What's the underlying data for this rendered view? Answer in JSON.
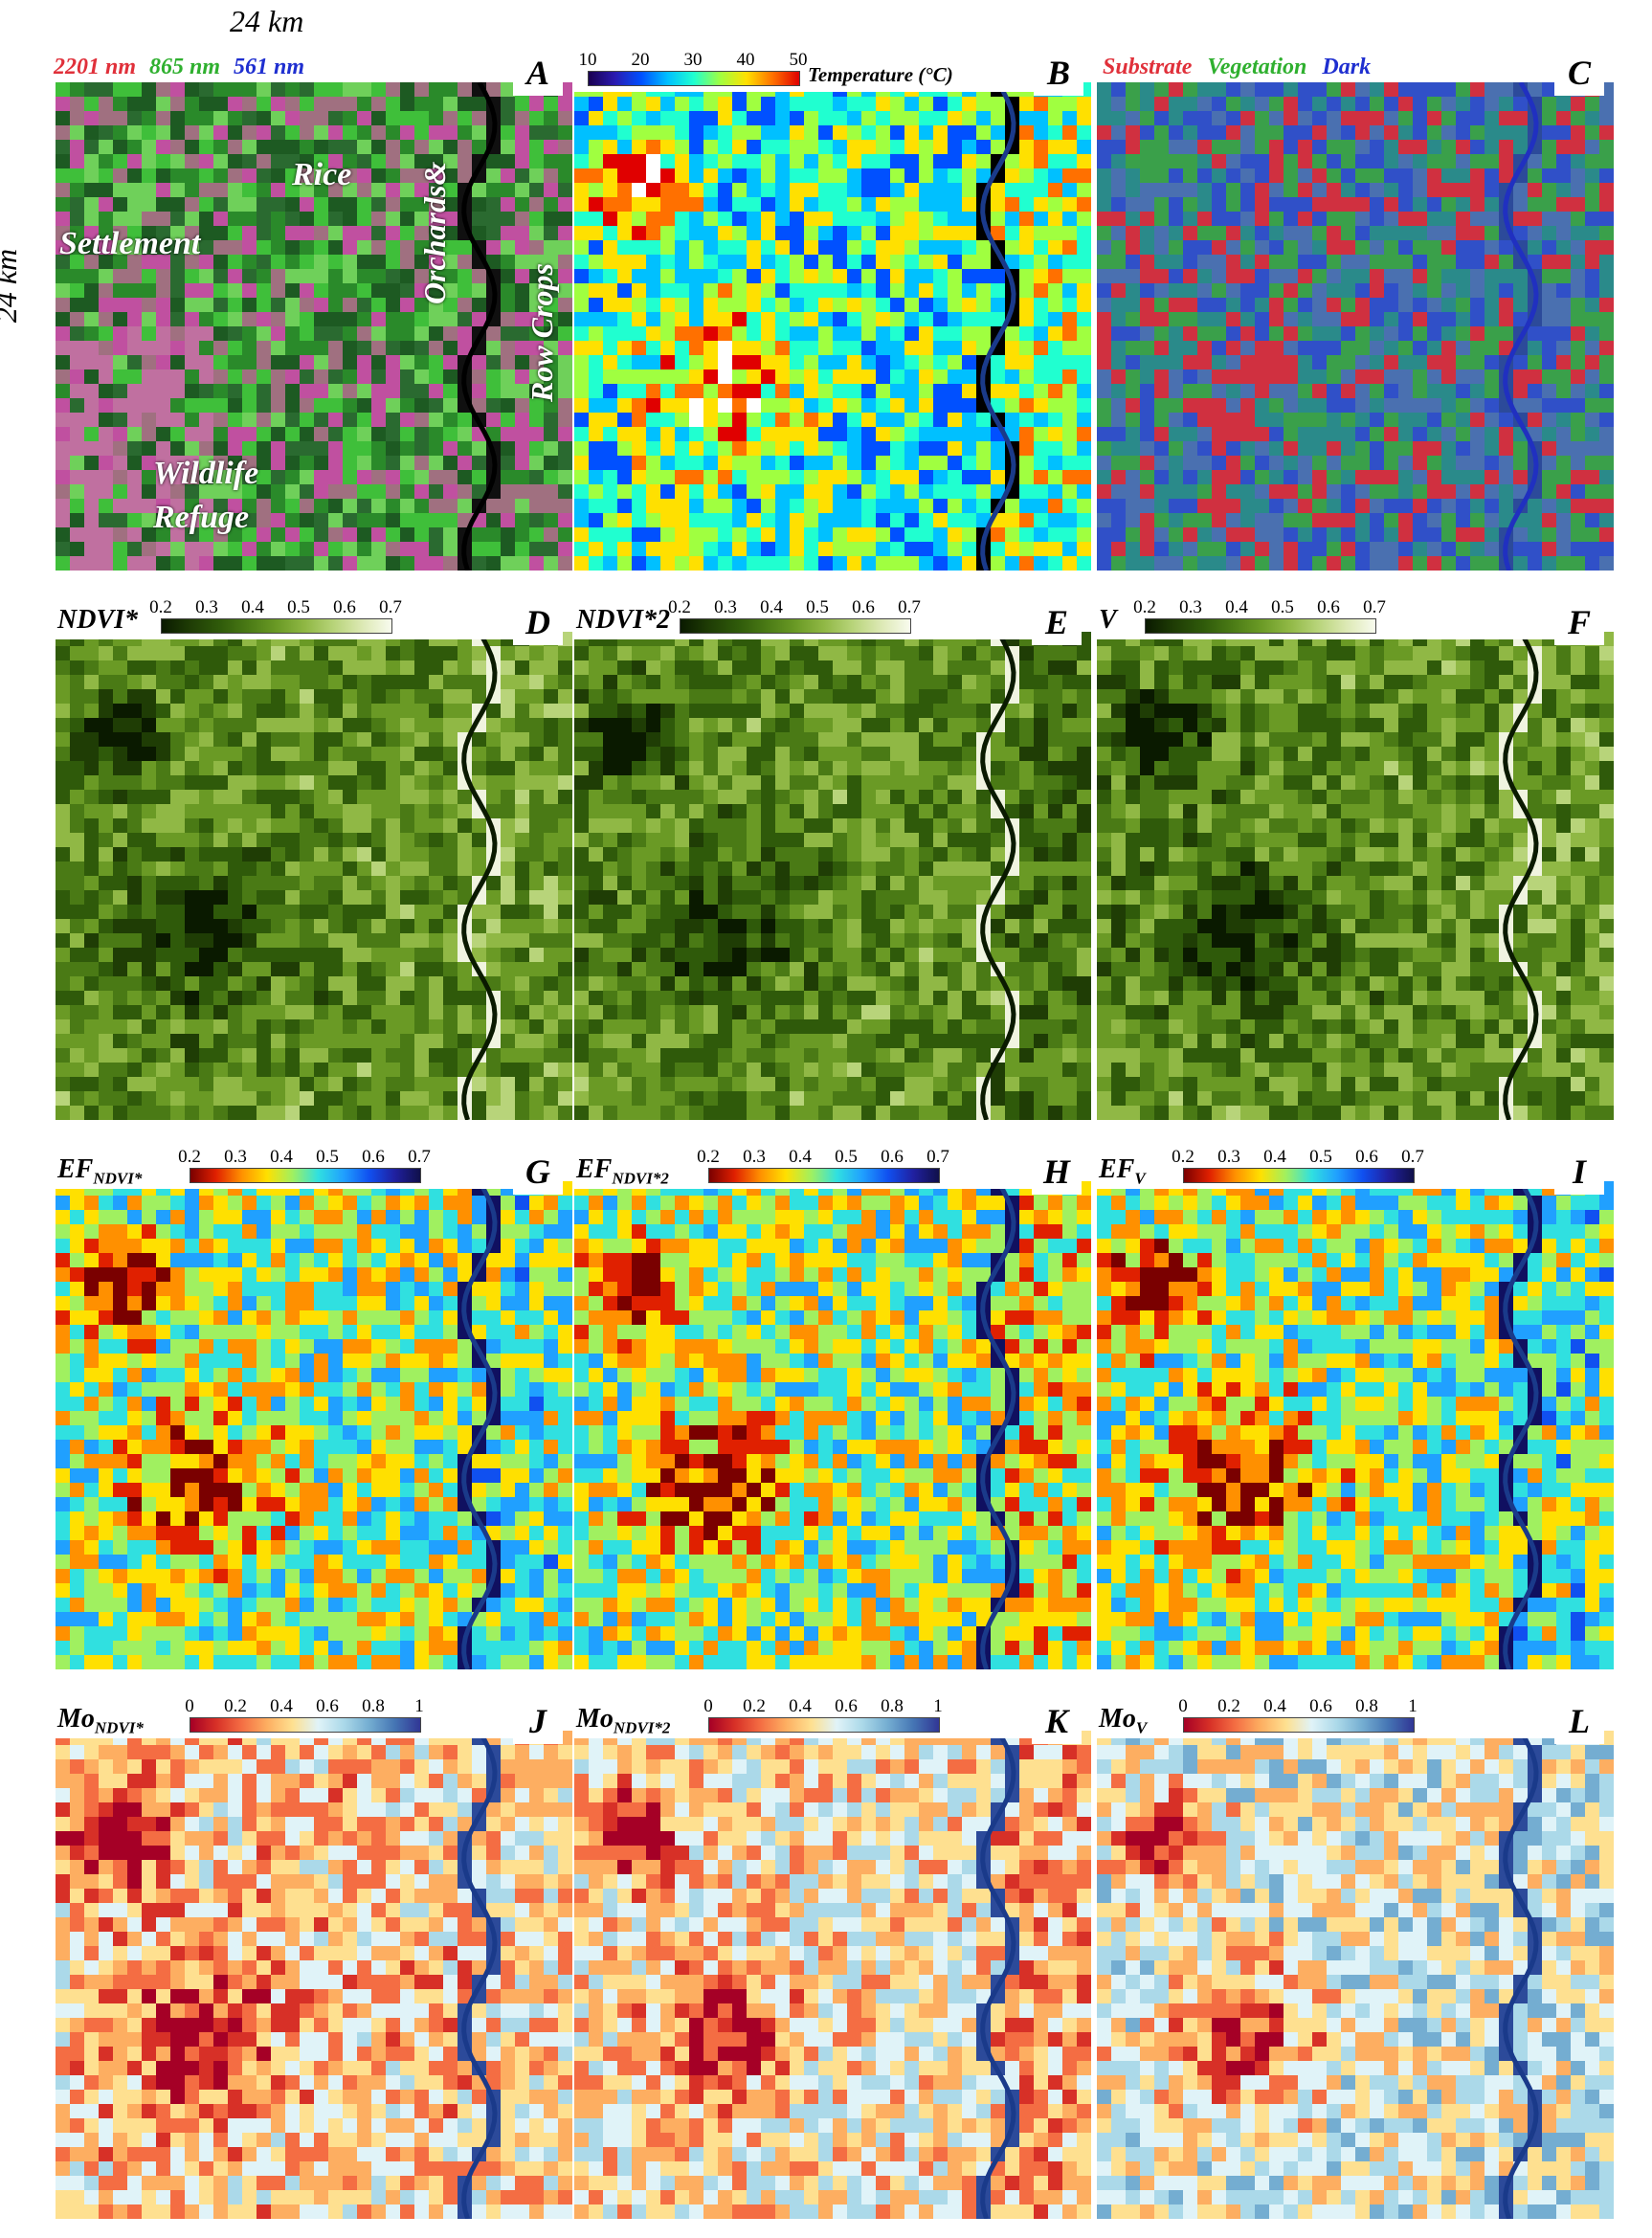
{
  "scale": {
    "width_label": "24 km",
    "height_label": "24 km"
  },
  "panels": {
    "A": {
      "letter": "A",
      "bands": [
        "2201 nm",
        "865 nm",
        "561 nm"
      ],
      "band_colors": [
        "#e0303a",
        "#2fb02f",
        "#1f2fd0"
      ],
      "labels": [
        "Rice",
        "Settlement",
        "Wildlife",
        "Refuge",
        "Orchards&",
        "Row Crops"
      ]
    },
    "B": {
      "letter": "B",
      "title": "Temperature (°C)",
      "ticks": [
        "10",
        "20",
        "30",
        "40",
        "50"
      ],
      "colormap": "jet"
    },
    "C": {
      "letter": "C",
      "classes": [
        "Substrate",
        "Vegetation",
        "Dark"
      ],
      "class_colors": [
        "#e0303a",
        "#2fb02f",
        "#1f2fd0"
      ]
    },
    "D": {
      "letter": "D",
      "title": "NDVI*",
      "ticks": [
        "0.2",
        "0.3",
        "0.4",
        "0.5",
        "0.6",
        "0.7"
      ],
      "colormap": "greens"
    },
    "E": {
      "letter": "E",
      "title": "NDVI*2",
      "ticks": [
        "0.2",
        "0.3",
        "0.4",
        "0.5",
        "0.6",
        "0.7"
      ],
      "colormap": "greens"
    },
    "F": {
      "letter": "F",
      "title": "V",
      "ticks": [
        "0.2",
        "0.3",
        "0.4",
        "0.5",
        "0.6",
        "0.7"
      ],
      "colormap": "greens"
    },
    "G": {
      "letter": "G",
      "title": "EF",
      "sub": "NDVI*",
      "ticks": [
        "0.2",
        "0.3",
        "0.4",
        "0.5",
        "0.6",
        "0.7"
      ],
      "colormap": "jet-reversed"
    },
    "H": {
      "letter": "H",
      "title": "EF",
      "sub": "NDVI*2",
      "ticks": [
        "0.2",
        "0.3",
        "0.4",
        "0.5",
        "0.6",
        "0.7"
      ],
      "colormap": "jet-reversed"
    },
    "I": {
      "letter": "I",
      "title": "EF",
      "sub": "V",
      "ticks": [
        "0.2",
        "0.3",
        "0.4",
        "0.5",
        "0.6",
        "0.7"
      ],
      "colormap": "jet-reversed"
    },
    "J": {
      "letter": "J",
      "title": "Mo",
      "sub": "NDVI*",
      "ticks": [
        "0",
        "0.2",
        "0.4",
        "0.6",
        "0.8",
        "1"
      ],
      "colormap": "RdYlBu"
    },
    "K": {
      "letter": "K",
      "title": "Mo",
      "sub": "NDVI*2",
      "ticks": [
        "0",
        "0.2",
        "0.4",
        "0.6",
        "0.8",
        "1"
      ],
      "colormap": "RdYlBu"
    },
    "L": {
      "letter": "L",
      "title": "Mo",
      "sub": "V",
      "ticks": [
        "0",
        "0.2",
        "0.4",
        "0.6",
        "0.8",
        "1"
      ],
      "colormap": "RdYlBu"
    }
  }
}
